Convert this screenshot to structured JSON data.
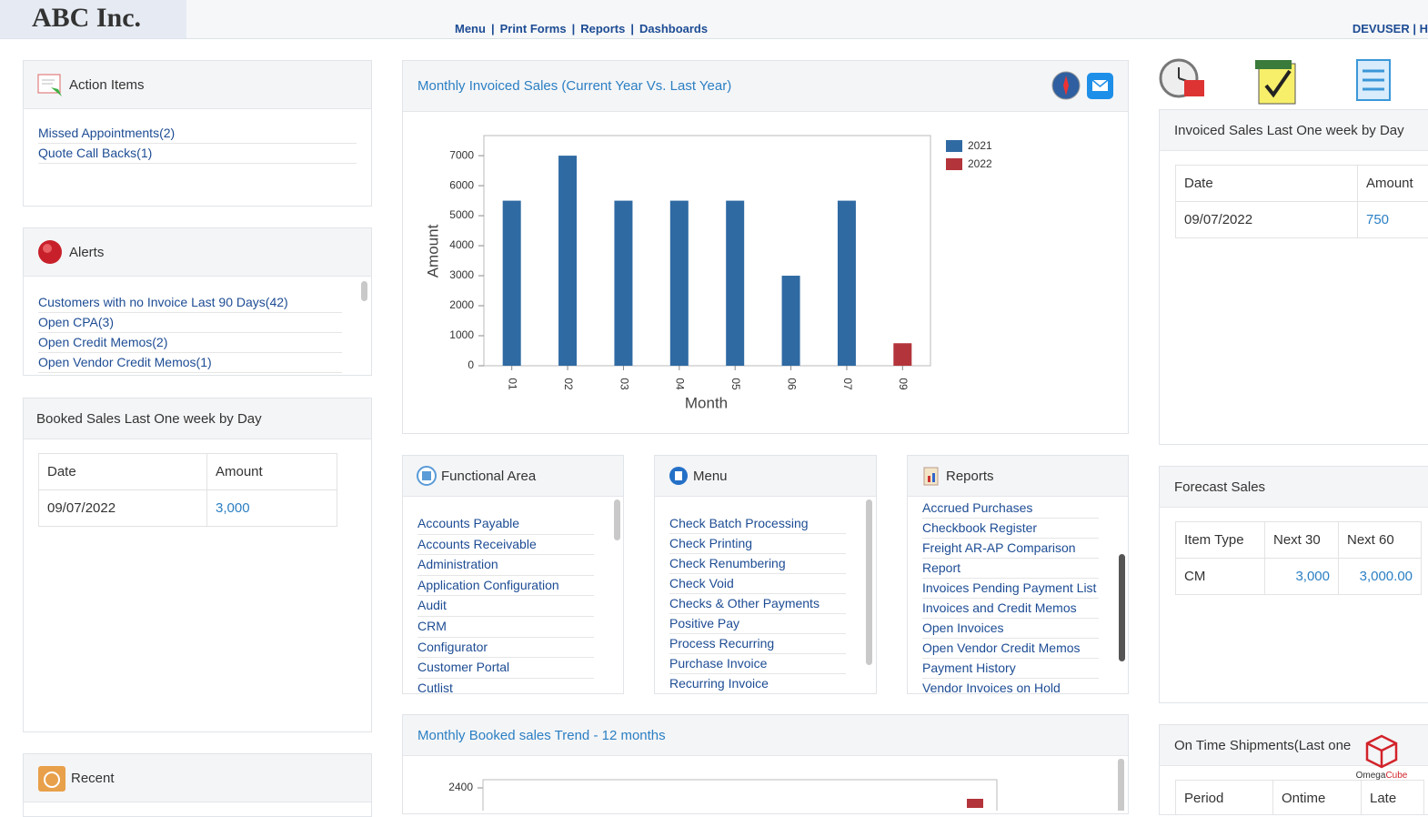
{
  "header": {
    "logo": "ABC Inc.",
    "nav": [
      "Menu",
      "Print Forms",
      "Reports",
      "Dashboards"
    ],
    "nav_separator": "|",
    "user": "DEVUSER",
    "user_tail": "| H"
  },
  "action_items": {
    "title": "Action Items",
    "items": [
      "Missed Appointments(2)",
      "Quote Call Backs(1)"
    ]
  },
  "alerts": {
    "title": "Alerts",
    "items": [
      "Customers with no Invoice Last 90 Days(42)",
      "Open CPA(3)",
      "Open Credit Memos(2)",
      "Open Vendor Credit Memos(1)"
    ]
  },
  "booked_sales": {
    "title": "Booked Sales Last One week by Day",
    "headers": [
      "Date",
      "Amount"
    ],
    "rows": [
      [
        "09/07/2022",
        "3,000"
      ]
    ]
  },
  "recent": {
    "title": "Recent"
  },
  "chart_data": {
    "type": "bar",
    "title": "Monthly Invoiced Sales (Current Year Vs. Last Year)",
    "categories": [
      "01",
      "02",
      "03",
      "04",
      "05",
      "06",
      "07",
      "09"
    ],
    "series": [
      {
        "name": "2021",
        "color": "#2f6aa3",
        "values": [
          5500,
          7000,
          5500,
          5500,
          5500,
          3000,
          5500,
          null
        ]
      },
      {
        "name": "2022",
        "color": "#b3343a",
        "values": [
          null,
          null,
          null,
          null,
          null,
          null,
          null,
          750
        ]
      }
    ],
    "ylim": [
      0,
      7670
    ],
    "yticks": [
      0,
      1000,
      2000,
      3000,
      4000,
      5000,
      6000,
      7000
    ],
    "xlabel": "Month",
    "ylabel": "Amount",
    "grid": false,
    "legend": "right"
  },
  "functional_area": {
    "title": "Functional Area",
    "items": [
      "Accounts Payable",
      "Accounts Receivable",
      "Administration",
      "Application Configuration",
      "Audit",
      "CRM",
      "Configurator",
      "Customer Portal",
      "Cutlist"
    ]
  },
  "menu": {
    "title": "Menu",
    "items": [
      "Check Batch Processing",
      "Check Printing",
      "Check Renumbering",
      "Check Void",
      "Checks & Other Payments",
      "Positive Pay",
      "Process Recurring",
      "Purchase Invoice",
      "Recurring Invoice"
    ]
  },
  "reports": {
    "title": "Reports",
    "items": [
      "Accrued Purchases",
      "Checkbook Register",
      "Freight AR-AP Comparison",
      "Report",
      "Invoices Pending Payment List",
      "Invoices and Credit Memos",
      "Open Invoices",
      "Open Vendor Credit Memos",
      "Payment History",
      "Vendor Invoices on Hold"
    ]
  },
  "booked_trend": {
    "title": "Monthly Booked sales Trend - 12 months",
    "top_tick": "2400"
  },
  "invoiced_week": {
    "title": "Invoiced Sales Last One week by Day",
    "headers": [
      "Date",
      "Amount"
    ],
    "rows": [
      [
        "09/07/2022",
        "750"
      ]
    ]
  },
  "forecast": {
    "title": "Forecast Sales",
    "headers": [
      "Item Type",
      "Next 30",
      "Next 60"
    ],
    "rows": [
      [
        "CM",
        "3,000",
        "3,000.00"
      ]
    ]
  },
  "ontime": {
    "title": "On Time Shipments(Last one",
    "headers": [
      "Period",
      "Ontime",
      "Late"
    ]
  },
  "watermark": {
    "brand_a": "Omega",
    "brand_b": "Cube"
  }
}
